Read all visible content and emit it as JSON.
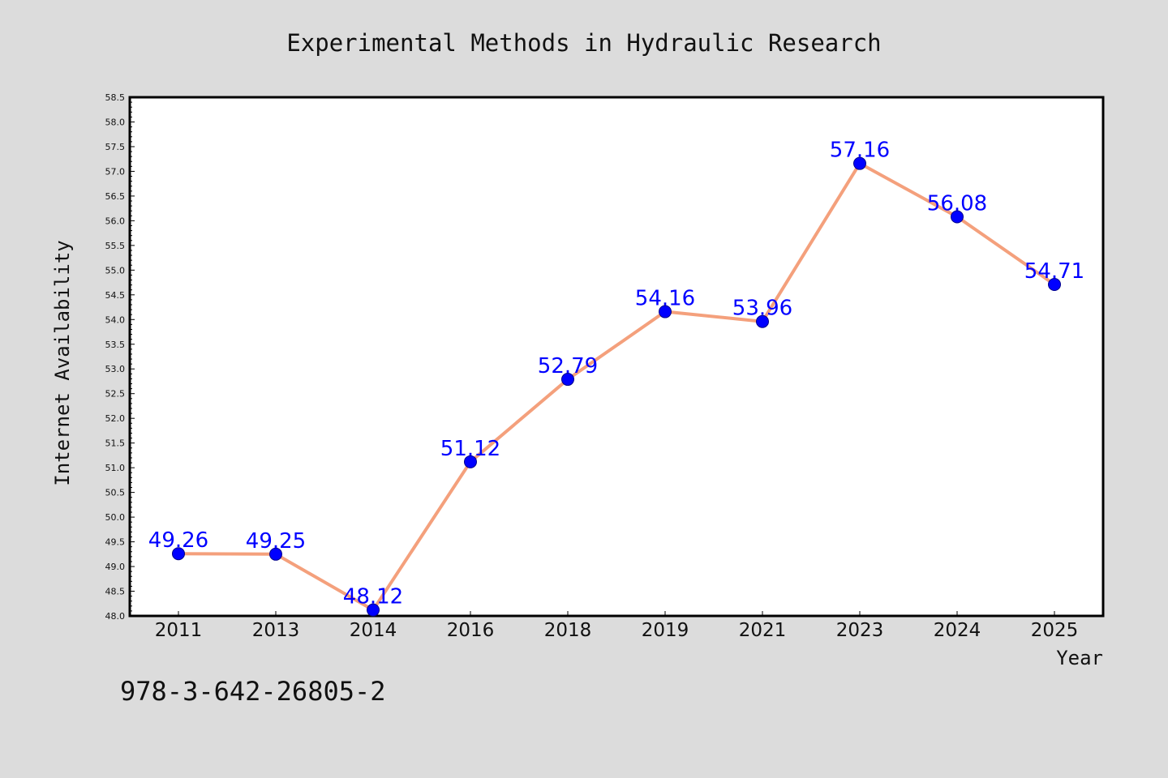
{
  "chart_data": {
    "type": "line",
    "title": "Experimental Methods in Hydraulic Research",
    "xlabel": "Year",
    "ylabel": "Internet Availability",
    "categories": [
      "2011",
      "2013",
      "2014",
      "2016",
      "2018",
      "2019",
      "2021",
      "2023",
      "2024",
      "2025"
    ],
    "series": [
      {
        "values": [
          49.26,
          49.25,
          48.12,
          51.12,
          52.79,
          54.16,
          53.96,
          57.16,
          56.08,
          54.71
        ],
        "labels": [
          "49.26",
          "49.25",
          "48.12",
          "51.12",
          "52.79",
          "54.16",
          "53.96",
          "57.16",
          "56.08",
          "54.71"
        ],
        "line_color": "#f4a07c",
        "marker_color": "#0000ff"
      }
    ],
    "ylim": [
      48.0,
      58.5
    ],
    "yticks": [
      "48.0",
      "48.5",
      "49.0",
      "49.5",
      "50.0",
      "50.5",
      "51.0",
      "51.5",
      "52.0",
      "52.5",
      "53.0",
      "53.5",
      "54.0",
      "54.5",
      "55.0",
      "55.5",
      "56.0",
      "56.5",
      "57.0",
      "57.5",
      "58.0",
      "58.5"
    ],
    "grid": false,
    "legend": "none"
  },
  "footnote": "978-3-642-26805-2",
  "colors": {
    "background": "#dcdcdc",
    "plot_area": "#ffffff",
    "label": "#0000ff"
  }
}
